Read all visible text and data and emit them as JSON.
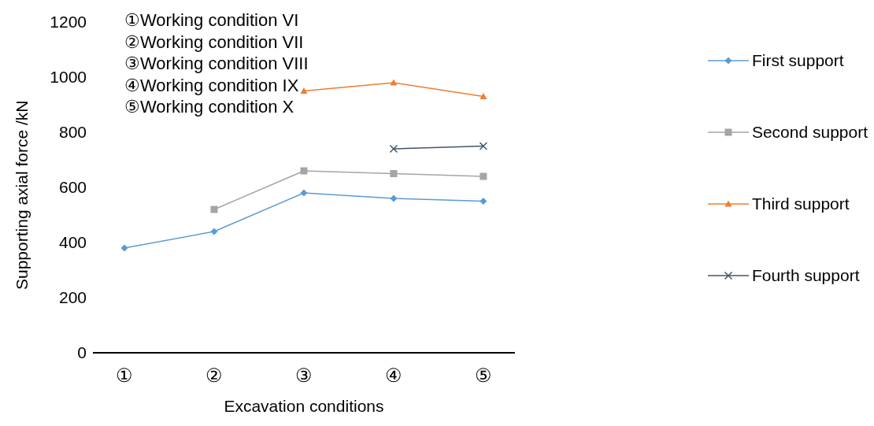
{
  "chart_data": {
    "type": "line",
    "xlabel": "Excavation conditions",
    "ylabel": "Supporting axial force /kN",
    "categories": [
      "①",
      "②",
      "③",
      "④",
      "⑤"
    ],
    "series": [
      {
        "name": "First support",
        "color": "#5b9bd5",
        "marker": "diamond",
        "values": [
          380,
          440,
          580,
          560,
          550
        ]
      },
      {
        "name": "Second support",
        "color": "#a5a5a5",
        "marker": "square",
        "values": [
          null,
          520,
          660,
          650,
          640
        ]
      },
      {
        "name": "Third support",
        "color": "#ed7d31",
        "marker": "triangle",
        "values": [
          null,
          null,
          950,
          980,
          930
        ]
      },
      {
        "name": "Fourth support",
        "color": "#44546a",
        "marker": "cross",
        "values": [
          null,
          null,
          null,
          740,
          750
        ]
      }
    ],
    "ylim": [
      0,
      1200
    ],
    "yticks": [
      0,
      200,
      400,
      600,
      800,
      1000,
      1200
    ],
    "grid": false,
    "legend": "right",
    "annotations": [
      "①Working condition VI",
      "②Working condition VII",
      "③Working condition VIII",
      "④Working condition IX",
      "⑤Working condition X"
    ]
  }
}
